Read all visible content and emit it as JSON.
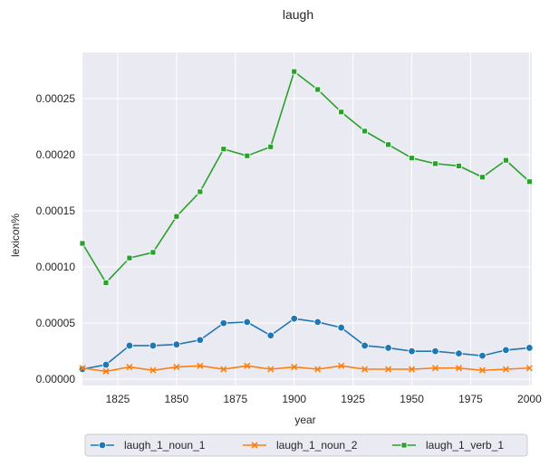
{
  "chart_data": {
    "type": "line",
    "title": "laugh",
    "xlabel": "year",
    "ylabel": "lexicon%",
    "xlim": [
      1810,
      2001
    ],
    "ylim": [
      -5.5e-06,
      0.000291
    ],
    "xticks": [
      1825,
      1850,
      1875,
      1900,
      1925,
      1950,
      1975,
      2000
    ],
    "xtick_labels": [
      "1825",
      "1850",
      "1875",
      "1900",
      "1925",
      "1950",
      "1975",
      "2000"
    ],
    "yticks": [
      0,
      5e-05,
      0.0001,
      0.00015,
      0.0002,
      0.00025
    ],
    "ytick_labels": [
      "0.00000",
      "0.00005",
      "0.00010",
      "0.00015",
      "0.00020",
      "0.00025"
    ],
    "grid": true,
    "legend_position": "bottom-center",
    "x": [
      1810,
      1820,
      1830,
      1840,
      1850,
      1860,
      1870,
      1880,
      1890,
      1900,
      1910,
      1920,
      1930,
      1940,
      1950,
      1960,
      1970,
      1980,
      1990,
      2000
    ],
    "series": [
      {
        "name": "laugh_1_noun_1",
        "color": "#1f77b4",
        "marker": "circle",
        "values": [
          9e-06,
          1.3e-05,
          3e-05,
          3e-05,
          3.1e-05,
          3.5e-05,
          5e-05,
          5.1e-05,
          3.9e-05,
          5.4e-05,
          5.1e-05,
          4.6e-05,
          3e-05,
          2.8e-05,
          2.5e-05,
          2.5e-05,
          2.3e-05,
          2.1e-05,
          2.6e-05,
          2.8e-05
        ]
      },
      {
        "name": "laugh_1_noun_2",
        "color": "#ff7f0e",
        "marker": "x",
        "values": [
          1e-05,
          7e-06,
          1.1e-05,
          8e-06,
          1.1e-05,
          1.2e-05,
          9e-06,
          1.2e-05,
          9e-06,
          1.1e-05,
          9e-06,
          1.2e-05,
          9e-06,
          9e-06,
          9e-06,
          1e-05,
          1e-05,
          8e-06,
          9e-06,
          1e-05
        ]
      },
      {
        "name": "laugh_1_verb_1",
        "color": "#2ca02c",
        "marker": "square",
        "values": [
          0.000121,
          8.6e-05,
          0.000108,
          0.000113,
          0.000145,
          0.000167,
          0.000205,
          0.000199,
          0.000207,
          0.000274,
          0.000258,
          0.000238,
          0.000221,
          0.000209,
          0.000197,
          0.000192,
          0.00019,
          0.00018,
          0.000195,
          0.000176
        ]
      }
    ]
  }
}
